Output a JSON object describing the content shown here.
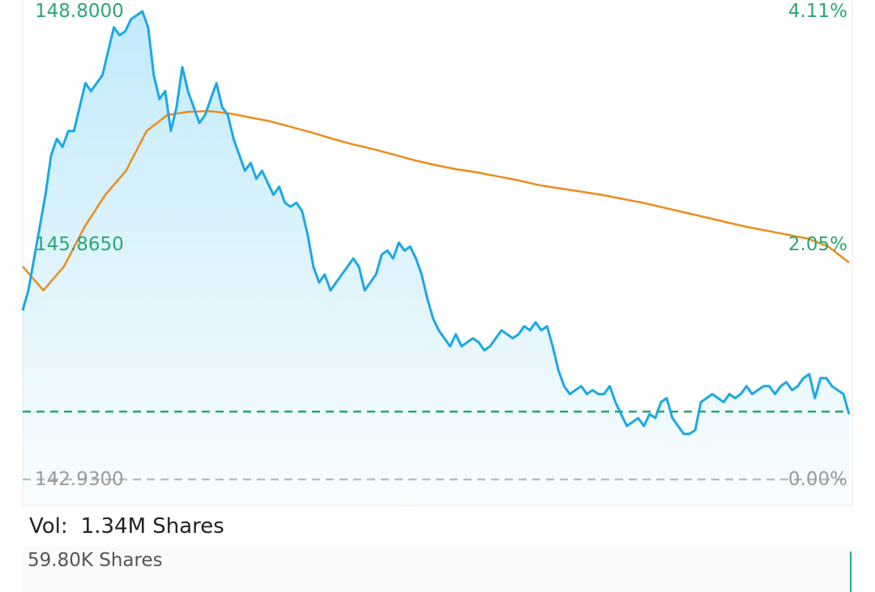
{
  "chart_data": {
    "type": "line",
    "price_range": [
      142.93,
      148.8
    ],
    "labels_left": [
      "148.8000",
      "145.8650",
      "142.9300"
    ],
    "labels_right": [
      "4.11%",
      "2.05%",
      "0.00%"
    ],
    "reference_price": 143.78,
    "colors": {
      "price_line": "#1ba8e6",
      "avg_line": "#ec8c1c",
      "reference_line": "#2aa773",
      "base_line": "#bdbdbd",
      "label_green": "#2aa773",
      "label_gray": "#9a9a9a"
    },
    "series": [
      {
        "key": "price",
        "values": [
          145.05,
          145.3,
          145.7,
          146.1,
          146.5,
          147.0,
          147.2,
          147.1,
          147.3,
          147.3,
          147.6,
          147.9,
          147.8,
          147.9,
          148.0,
          148.3,
          148.6,
          148.5,
          148.55,
          148.7,
          148.75,
          148.8,
          148.6,
          148.0,
          147.7,
          147.8,
          147.3,
          147.6,
          148.1,
          147.8,
          147.6,
          147.4,
          147.5,
          147.7,
          147.9,
          147.6,
          147.5,
          147.2,
          147.0,
          146.8,
          146.9,
          146.7,
          146.8,
          146.65,
          146.5,
          146.6,
          146.4,
          146.35,
          146.4,
          146.3,
          146.0,
          145.6,
          145.4,
          145.5,
          145.3,
          145.4,
          145.5,
          145.6,
          145.7,
          145.6,
          145.3,
          145.4,
          145.5,
          145.75,
          145.8,
          145.7,
          145.9,
          145.8,
          145.85,
          145.7,
          145.5,
          145.2,
          144.95,
          144.8,
          144.7,
          144.6,
          144.75,
          144.6,
          144.65,
          144.7,
          144.65,
          144.55,
          144.6,
          144.7,
          144.8,
          144.75,
          144.7,
          144.75,
          144.85,
          144.8,
          144.9,
          144.8,
          144.85,
          144.6,
          144.3,
          144.1,
          144.0,
          144.05,
          144.1,
          144.0,
          144.05,
          144.0,
          144.0,
          144.1,
          143.9,
          143.75,
          143.6,
          143.65,
          143.7,
          143.6,
          143.75,
          143.7,
          143.9,
          143.95,
          143.7,
          143.6,
          143.5,
          143.5,
          143.55,
          143.9,
          143.95,
          144.0,
          143.95,
          143.9,
          144.0,
          143.95,
          144.0,
          144.1,
          144.0,
          144.05,
          144.1,
          144.1,
          144.0,
          144.1,
          144.15,
          144.05,
          144.1,
          144.2,
          144.25,
          143.95,
          144.2,
          144.2,
          144.1,
          144.05,
          144.0,
          143.75
        ],
        "name": ""
      },
      {
        "key": "avg",
        "values": [
          145.6,
          145.3,
          145.6,
          146.1,
          146.5,
          146.8,
          147.3,
          147.5,
          147.54,
          147.55,
          147.52,
          147.47,
          147.42,
          147.35,
          147.28,
          147.2,
          147.13,
          147.07,
          147.0,
          146.93,
          146.87,
          146.82,
          146.78,
          146.73,
          146.68,
          146.62,
          146.58,
          146.54,
          146.5,
          146.45,
          146.4,
          146.34,
          146.28,
          146.22,
          146.16,
          146.1,
          146.05,
          146.0,
          145.95,
          145.85,
          145.65
        ],
        "name": ""
      }
    ],
    "volume": {
      "value_label": "1.34M Shares",
      "max_label": "59.80K Shares"
    }
  },
  "vol_label": "Vol:"
}
